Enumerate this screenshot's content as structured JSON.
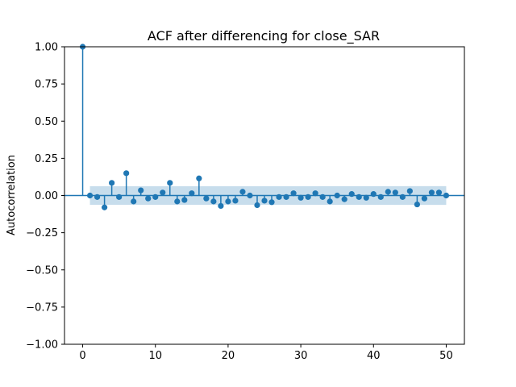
{
  "chart_data": {
    "type": "scatter",
    "subtype": "stem",
    "title": "ACF after differencing for close_SAR",
    "xlabel": "",
    "ylabel": "Autocorrelation",
    "xlim": [
      -2.5,
      52.5
    ],
    "ylim": [
      -1.0,
      1.0
    ],
    "x_ticks": [
      0,
      10,
      20,
      30,
      40,
      50
    ],
    "x_tick_labels": [
      "0",
      "10",
      "20",
      "30",
      "40",
      "50"
    ],
    "y_ticks": [
      1.0,
      0.75,
      0.5,
      0.25,
      0.0,
      -0.25,
      -0.5,
      -0.75,
      -1.0
    ],
    "y_tick_labels": [
      "1.00",
      "0.75",
      "0.50",
      "0.25",
      "0.00",
      "−0.25",
      "−0.50",
      "−0.75",
      "−1.00"
    ],
    "grid": false,
    "lags": [
      0,
      1,
      2,
      3,
      4,
      5,
      6,
      7,
      8,
      9,
      10,
      11,
      12,
      13,
      14,
      15,
      16,
      17,
      18,
      19,
      20,
      21,
      22,
      23,
      24,
      25,
      26,
      27,
      28,
      29,
      30,
      31,
      32,
      33,
      34,
      35,
      36,
      37,
      38,
      39,
      40,
      41,
      42,
      43,
      44,
      45,
      46,
      47,
      48,
      49,
      50
    ],
    "values": [
      1.0,
      0.0,
      -0.01,
      -0.08,
      0.085,
      -0.01,
      0.15,
      -0.04,
      0.035,
      -0.02,
      -0.01,
      0.02,
      0.085,
      -0.04,
      -0.03,
      0.015,
      0.115,
      -0.02,
      -0.04,
      -0.07,
      -0.04,
      -0.035,
      0.025,
      0.0,
      -0.065,
      -0.035,
      -0.045,
      -0.01,
      -0.01,
      0.015,
      -0.015,
      -0.01,
      0.015,
      -0.01,
      -0.04,
      0.0,
      -0.025,
      0.01,
      -0.01,
      -0.015,
      0.01,
      -0.01,
      0.025,
      0.02,
      -0.01,
      0.03,
      -0.06,
      -0.02,
      0.02,
      0.02,
      0.0
    ],
    "confidence_band": {
      "lags": [
        1,
        50
      ],
      "lower": [
        -0.062,
        -0.063
      ],
      "upper": [
        0.062,
        0.063
      ]
    },
    "colors": {
      "stem": "#1f77b4",
      "marker": "#1f77b4",
      "zero_line": "#1f77b4",
      "band": "#1f77b4",
      "band_opacity": 0.25
    }
  }
}
